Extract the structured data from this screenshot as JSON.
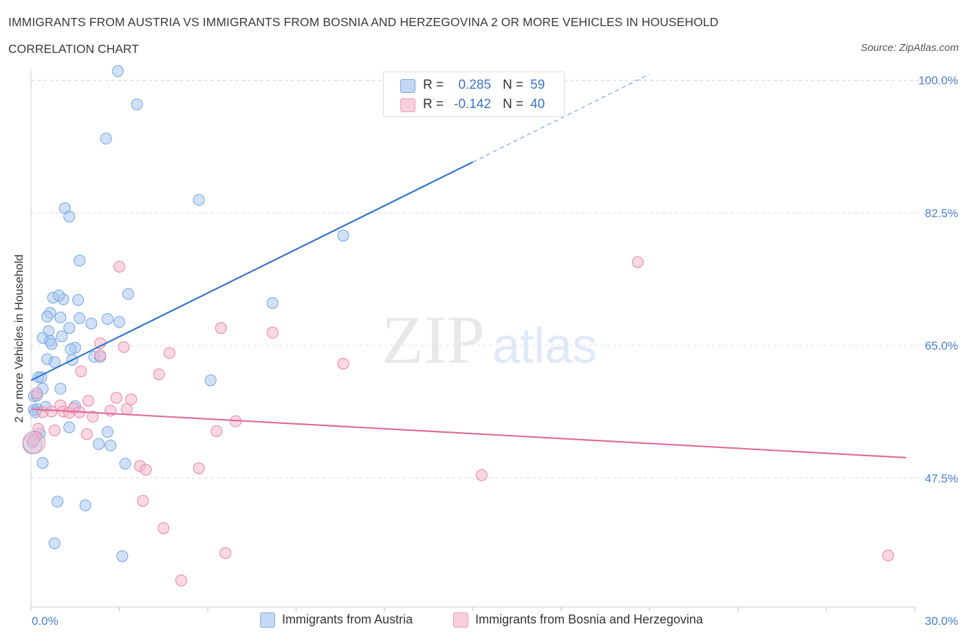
{
  "header": {
    "title": "IMMIGRANTS FROM AUSTRIA VS IMMIGRANTS FROM BOSNIA AND HERZEGOVINA 2 OR MORE VEHICLES IN HOUSEHOLD",
    "subtitle": "CORRELATION CHART",
    "source": "Source: ZipAtlas.com"
  },
  "watermark": {
    "zip": "ZIP",
    "atlas": "atlas"
  },
  "legend_top": {
    "rows": [
      {
        "r_label": "R =",
        "r_value": "0.285",
        "n_label": "N =",
        "n_value": "59",
        "color": "#a9c8f0"
      },
      {
        "r_label": "R =",
        "r_value": "-0.142",
        "n_label": "N =",
        "n_value": "40",
        "color": "#f5b8cc"
      }
    ]
  },
  "legend_bottom": {
    "items": [
      {
        "label": "Immigrants from Austria",
        "color": "#a9c8f0"
      },
      {
        "label": "Immigrants from Bosnia and Herzegovina",
        "color": "#f5b8cc"
      }
    ]
  },
  "chart_data": {
    "type": "scatter",
    "title": "IMMIGRANTS FROM AUSTRIA VS IMMIGRANTS FROM BOSNIA AND HERZEGOVINA 2 OR MORE VEHICLES IN HOUSEHOLD",
    "subtitle": "CORRELATION CHART",
    "xlabel": "",
    "ylabel": "2 or more Vehicles in Household",
    "xlim": [
      0,
      30
    ],
    "ylim": [
      30.5,
      101.5
    ],
    "x_tick_labels": [
      {
        "value": 0,
        "label": "0.0%"
      },
      {
        "value": 30,
        "label": "30.0%"
      }
    ],
    "y_tick_labels": [
      {
        "value": 100,
        "label": "100.0%"
      },
      {
        "value": 82.5,
        "label": "82.5%"
      },
      {
        "value": 65,
        "label": "65.0%"
      },
      {
        "value": 47.5,
        "label": "47.5%"
      }
    ],
    "grid": true,
    "series": [
      {
        "name": "Immigrants from Austria",
        "color": "#6fa3e3",
        "fill": "#a9c8f0",
        "trend": {
          "x0": 0,
          "y0": 60.4,
          "x1": 15,
          "y1": 89.2,
          "dash_to_x": 21,
          "dash_to_y": 100.8
        },
        "points": [
          [
            2.95,
            101.2
          ],
          [
            3.6,
            96.8
          ],
          [
            2.55,
            92.3
          ],
          [
            5.7,
            84.2
          ],
          [
            1.15,
            83.1
          ],
          [
            1.3,
            82.0
          ],
          [
            10.6,
            79.5
          ],
          [
            1.65,
            76.2
          ],
          [
            3.3,
            71.8
          ],
          [
            0.75,
            71.3
          ],
          [
            1.1,
            71.1
          ],
          [
            1.6,
            71.0
          ],
          [
            8.2,
            70.6
          ],
          [
            0.95,
            71.6
          ],
          [
            0.65,
            69.3
          ],
          [
            0.55,
            68.8
          ],
          [
            1.0,
            68.7
          ],
          [
            1.65,
            68.6
          ],
          [
            2.6,
            68.5
          ],
          [
            3.0,
            68.1
          ],
          [
            2.05,
            67.9
          ],
          [
            1.3,
            67.3
          ],
          [
            0.6,
            66.9
          ],
          [
            1.05,
            66.2
          ],
          [
            0.4,
            66.0
          ],
          [
            0.65,
            65.6
          ],
          [
            0.7,
            65.2
          ],
          [
            1.5,
            64.7
          ],
          [
            1.35,
            64.5
          ],
          [
            2.15,
            63.5
          ],
          [
            2.35,
            63.5
          ],
          [
            0.55,
            63.2
          ],
          [
            1.4,
            63.1
          ],
          [
            0.8,
            62.8
          ],
          [
            0.25,
            60.8
          ],
          [
            0.35,
            60.8
          ],
          [
            6.1,
            60.4
          ],
          [
            0.4,
            59.3
          ],
          [
            1.0,
            59.3
          ],
          [
            0.1,
            58.3
          ],
          [
            0.5,
            56.9
          ],
          [
            1.5,
            57.0
          ],
          [
            0.2,
            56.6
          ],
          [
            0.1,
            56.5
          ],
          [
            0.3,
            53.4
          ],
          [
            0.15,
            53.0
          ],
          [
            1.3,
            54.2
          ],
          [
            2.6,
            53.6
          ],
          [
            2.3,
            52.0
          ],
          [
            2.7,
            51.8
          ],
          [
            0.4,
            49.5
          ],
          [
            3.2,
            49.4
          ],
          [
            0.9,
            44.4
          ],
          [
            1.85,
            43.9
          ],
          [
            0.8,
            38.9
          ],
          [
            3.1,
            37.2
          ],
          [
            0.05,
            52.2
          ],
          [
            0.15,
            56.2
          ],
          [
            0.2,
            58.4
          ]
        ]
      },
      {
        "name": "Immigrants from Bosnia and Herzegovina",
        "color": "#e87fa4",
        "fill": "#f5b8cc",
        "trend": {
          "x0": 0,
          "y0": 56.6,
          "x1": 29.7,
          "y1": 50.2
        },
        "points": [
          [
            0.1,
            52.5
          ],
          [
            0.25,
            54.0
          ],
          [
            0.2,
            58.7
          ],
          [
            0.4,
            56.2
          ],
          [
            0.7,
            56.3
          ],
          [
            0.8,
            53.8
          ],
          [
            1.0,
            57.1
          ],
          [
            1.1,
            56.3
          ],
          [
            1.3,
            56.1
          ],
          [
            1.45,
            56.7
          ],
          [
            1.65,
            56.2
          ],
          [
            1.7,
            61.6
          ],
          [
            1.9,
            53.3
          ],
          [
            1.95,
            57.7
          ],
          [
            2.1,
            55.6
          ],
          [
            2.35,
            65.3
          ],
          [
            2.35,
            63.7
          ],
          [
            2.7,
            56.4
          ],
          [
            2.9,
            58.1
          ],
          [
            3.0,
            75.4
          ],
          [
            3.15,
            64.8
          ],
          [
            3.25,
            56.6
          ],
          [
            3.4,
            57.9
          ],
          [
            3.7,
            49.1
          ],
          [
            3.8,
            44.5
          ],
          [
            3.9,
            48.6
          ],
          [
            4.35,
            61.2
          ],
          [
            4.5,
            40.9
          ],
          [
            4.7,
            64.0
          ],
          [
            5.1,
            34.0
          ],
          [
            5.7,
            48.8
          ],
          [
            6.3,
            53.7
          ],
          [
            6.45,
            67.3
          ],
          [
            6.6,
            37.6
          ],
          [
            6.95,
            55.0
          ],
          [
            8.2,
            66.7
          ],
          [
            10.6,
            62.6
          ],
          [
            15.3,
            47.9
          ],
          [
            20.6,
            76.0
          ],
          [
            29.1,
            37.3
          ]
        ]
      }
    ]
  }
}
